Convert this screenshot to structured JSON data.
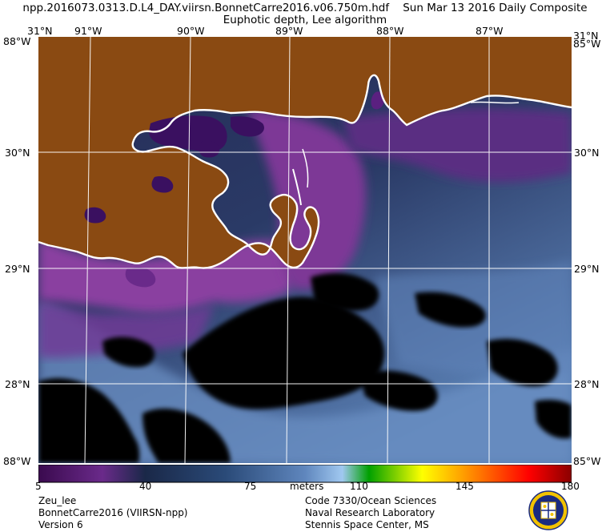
{
  "header": {
    "line1": "npp.2016073.0313.D.L4_DAY.viirsn.BonnetCarre2016.v06.750m.hdf    Sun Mar 13 2016 Daily Composite",
    "line2": "Euphotic depth, Lee algorithm"
  },
  "map": {
    "lon_labels": [
      "91°W",
      "90°W",
      "89°W",
      "88°W",
      "87°W"
    ],
    "lat_labels": [
      "30°N",
      "29°N",
      "28°N"
    ],
    "corner_labels": {
      "top_left": "31°N",
      "top_right": "31°N",
      "left_top": "88°W",
      "right_top": "85°W",
      "bottom_left": "88°W",
      "bottom_right": "85°W"
    },
    "colors": {
      "land": "#8a4a12",
      "coast": "#ffffff",
      "deep_water": "#1e2a4e",
      "plume": "#7a2e8e",
      "nodata": "#000000"
    }
  },
  "colorbar": {
    "ticks": [
      "5",
      "40",
      "75",
      "110",
      "145",
      "180"
    ],
    "tick_values": [
      5,
      40,
      75,
      110,
      145,
      180
    ],
    "range": [
      5,
      180
    ],
    "unit": "meters",
    "stops": [
      "#3a0a4e",
      "#6a2a8a",
      "#1a2848",
      "#3a5a8a",
      "#8ab4e0",
      "#00a000",
      "#ffff00",
      "#ff8000",
      "#ff0000",
      "#8a0000"
    ]
  },
  "footer": {
    "left": [
      "Zeu_lee",
      "BonnetCarre2016 (VIIRSN-npp)",
      "Version 6"
    ],
    "right": [
      "Code 7330/Ocean Sciences",
      "Naval Research Laboratory",
      "Stennis Space Center, MS"
    ],
    "logo": "nrl-seal-icon"
  }
}
